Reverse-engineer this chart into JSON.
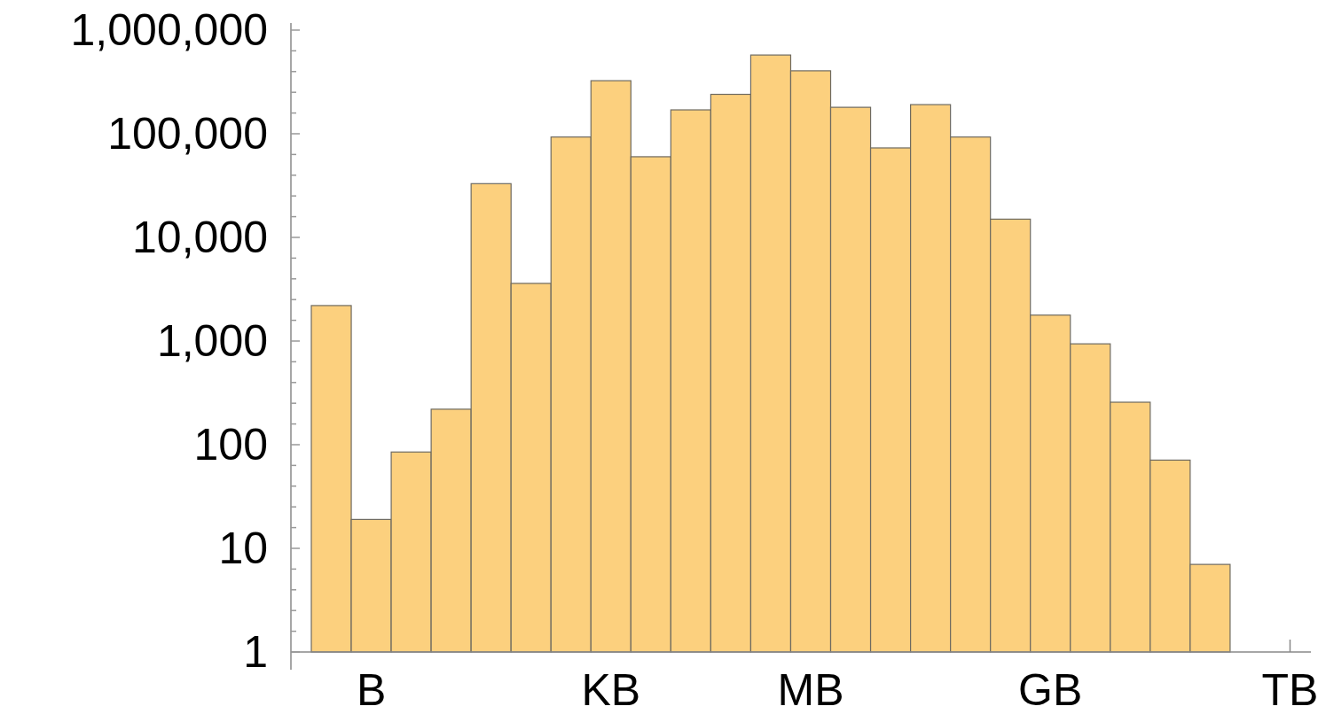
{
  "chart_data": {
    "type": "bar",
    "color": "#fcd07e",
    "log": "y",
    "categories": [
      null,
      "B",
      null,
      null,
      null,
      null,
      null,
      "KB",
      null,
      null,
      null,
      null,
      "MB",
      null,
      null,
      null,
      null,
      null,
      "GB",
      null,
      null,
      null,
      null,
      null,
      "TB"
    ],
    "values": [
      2200,
      19,
      85,
      220,
      33000,
      3600,
      93000,
      325000,
      60000,
      170000,
      240000,
      575000,
      405000,
      180000,
      73000,
      191000,
      93000,
      15000,
      1780,
      940,
      257,
      71,
      7,
      null,
      null
    ],
    "ylim": [
      1,
      1170000
    ],
    "yticks": [
      {
        "value": 1,
        "label": "1"
      },
      {
        "value": 1.585,
        "label": null
      },
      {
        "value": 2.512,
        "label": null
      },
      {
        "value": 3.981,
        "label": null
      },
      {
        "value": 6.31,
        "label": null
      },
      {
        "value": 10,
        "label": "10"
      },
      {
        "value": 15.85,
        "label": null
      },
      {
        "value": 25.12,
        "label": null
      },
      {
        "value": 39.81,
        "label": null
      },
      {
        "value": 63.1,
        "label": null
      },
      {
        "value": 100,
        "label": "100"
      },
      {
        "value": 158.5,
        "label": null
      },
      {
        "value": 251.2,
        "label": null
      },
      {
        "value": 398.1,
        "label": null
      },
      {
        "value": 631,
        "label": null
      },
      {
        "value": 1000,
        "label": "1,000"
      },
      {
        "value": 1585,
        "label": null
      },
      {
        "value": 2512,
        "label": null
      },
      {
        "value": 3981,
        "label": null
      },
      {
        "value": 6310,
        "label": null
      },
      {
        "value": 10000,
        "label": "10,000"
      },
      {
        "value": 15850,
        "label": null
      },
      {
        "value": 25120,
        "label": null
      },
      {
        "value": 39810,
        "label": null
      },
      {
        "value": 63100,
        "label": null
      },
      {
        "value": 100000,
        "label": "100,000"
      },
      {
        "value": 158500,
        "label": null
      },
      {
        "value": 251200,
        "label": null
      },
      {
        "value": 398100,
        "label": null
      },
      {
        "value": 631000,
        "label": null
      },
      {
        "value": 1000000,
        "label": "1,000,000"
      }
    ]
  }
}
